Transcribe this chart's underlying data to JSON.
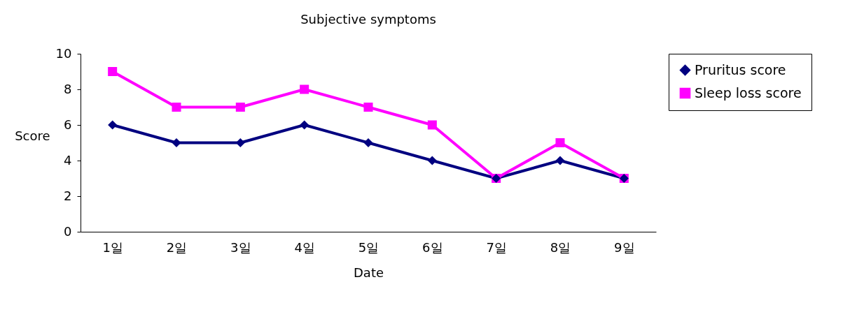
{
  "chart_data": {
    "type": "line",
    "title": "Subjective symptoms",
    "xlabel": "Date",
    "ylabel": "Score",
    "categories": [
      "1일",
      "2일",
      "3일",
      "4일",
      "5일",
      "6일",
      "7일",
      "8일",
      "9일"
    ],
    "series": [
      {
        "name": "Pruritus score",
        "color": "#000080",
        "marker": "diamond",
        "values": [
          6,
          5,
          5,
          6,
          5,
          4,
          3,
          4,
          3
        ]
      },
      {
        "name": "Sleep loss score",
        "color": "#ff00ff",
        "marker": "square",
        "values": [
          9,
          7,
          7,
          8,
          7,
          6,
          3,
          5,
          3
        ]
      }
    ],
    "ylim": [
      0,
      10
    ],
    "yticks": [
      0,
      2,
      4,
      6,
      8,
      10
    ],
    "grid": false,
    "legend": "right",
    "line_style": "solid"
  }
}
